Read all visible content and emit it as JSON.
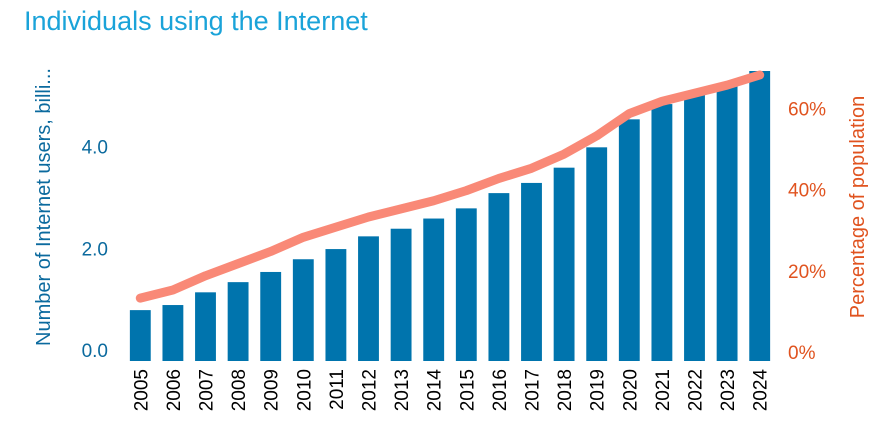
{
  "chart_data": {
    "type": "bar",
    "title": "Individuals using the Internet",
    "categories": [
      "2005",
      "2006",
      "2007",
      "2008",
      "2009",
      "2010",
      "2011",
      "2012",
      "2013",
      "2014",
      "2015",
      "2016",
      "2017",
      "2018",
      "2019",
      "2020",
      "2021",
      "2022",
      "2023",
      "2024"
    ],
    "series": [
      {
        "type": "bar",
        "axis": "left",
        "color": "#0074ad",
        "values": [
          1.0,
          1.1,
          1.35,
          1.55,
          1.75,
          2.0,
          2.2,
          2.45,
          2.6,
          2.8,
          3.0,
          3.3,
          3.5,
          3.8,
          4.2,
          4.75,
          5.05,
          5.25,
          5.45,
          5.7
        ]
      },
      {
        "type": "line",
        "axis": "right",
        "color": "#f98977",
        "values": [
          15.5,
          17.5,
          21,
          24,
          27,
          30.5,
          33,
          35.5,
          37.5,
          39.5,
          42,
          45,
          47.5,
          51,
          55.5,
          61,
          64,
          66,
          68,
          70.5
        ]
      }
    ],
    "y_left": {
      "label": "Number of Internet users, billi...",
      "ticks": [
        "0.0",
        "2.0",
        "4.0"
      ],
      "tick_values": [
        0,
        2,
        4
      ],
      "range": [
        0,
        5.7
      ]
    },
    "y_right": {
      "label": "Percentage of population",
      "ticks": [
        "0%",
        "20%",
        "40%",
        "60%"
      ],
      "tick_values": [
        0,
        20,
        40,
        60
      ],
      "range": [
        0,
        70.5
      ]
    },
    "grid": false,
    "legend": "none"
  }
}
